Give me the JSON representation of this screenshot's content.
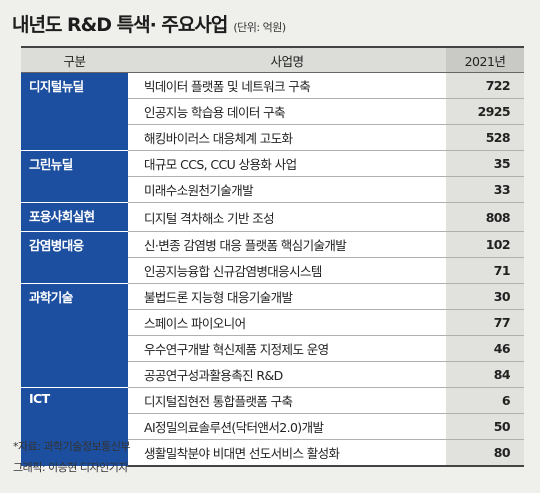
{
  "title": "내년도 R&D 특색· 주요사업",
  "unit": "(단위: 억원)",
  "headers": {
    "category": "구분",
    "project": "사업명",
    "value": "2021년"
  },
  "groups": [
    {
      "category": "디지털뉴딜",
      "rows": [
        {
          "project": "빅데이터 플랫폼 및 네트워크 구축",
          "value": "722"
        },
        {
          "project": "인공지능 학습용 데이터 구축",
          "value": "2925"
        },
        {
          "project": "해킹바이러스 대응체계 고도화",
          "value": "528"
        }
      ]
    },
    {
      "category": "그린뉴딜",
      "rows": [
        {
          "project": "대규모 CCS, CCU 상용화 사업",
          "value": "35"
        },
        {
          "project": "미래수소원천기술개발",
          "value": "33"
        }
      ]
    },
    {
      "category": "포용사회실현",
      "rows": [
        {
          "project": "디지털 격차해소 기반 조성",
          "value": "808"
        }
      ]
    },
    {
      "category": "감염병대응",
      "rows": [
        {
          "project": "신·변종 감염병 대응 플랫폼 핵심기술개발",
          "value": "102"
        },
        {
          "project": "인공지능융합 신규감염병대응시스템",
          "value": "71"
        }
      ]
    },
    {
      "category": "과학기술",
      "rows": [
        {
          "project": "불법드론 지능형 대응기술개발",
          "value": "30"
        },
        {
          "project": "스페이스 파이오니어",
          "value": "77"
        },
        {
          "project": "우수연구개발 혁신제품 지정제도 운영",
          "value": "46"
        },
        {
          "project": "공공연구성과활용촉진 R&D",
          "value": "84"
        }
      ]
    },
    {
      "category": "ICT",
      "rows": [
        {
          "project": "디지털집현전 통합플랫폼 구축",
          "value": "6"
        },
        {
          "project": "AI정밀의료솔루션(닥터앤서2.0)개발",
          "value": "50"
        },
        {
          "project": "생활밀착분야 비대면 선도서비스 활성화",
          "value": "80"
        }
      ]
    }
  ],
  "footer": {
    "source": "*자료: 과학기술정보통신부",
    "credit": "그래픽: 이승현 디자인기자"
  }
}
